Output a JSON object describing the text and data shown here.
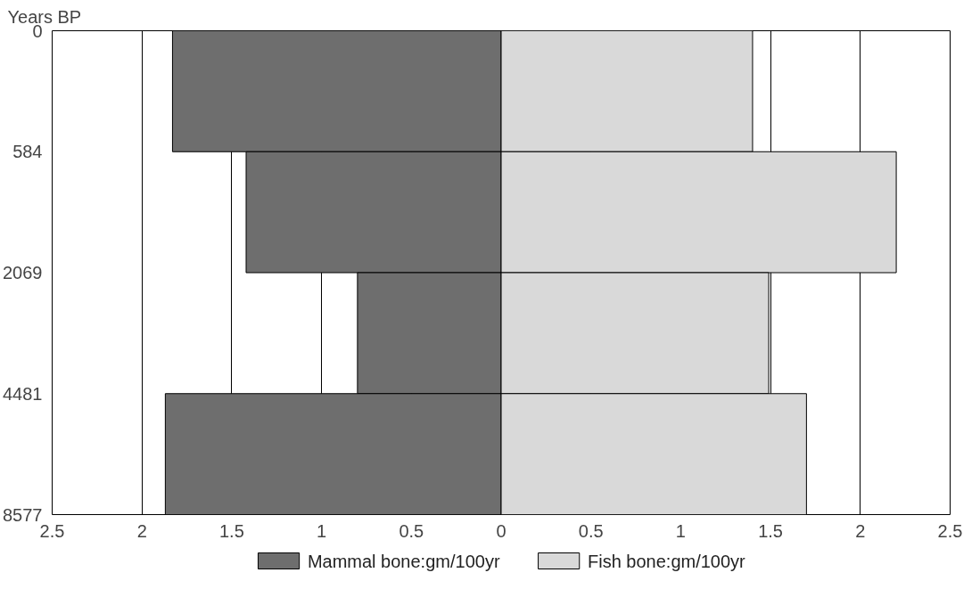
{
  "chart_data": {
    "type": "bar",
    "orientation": "horizontal",
    "ylabel": "Years BP",
    "stacked": true,
    "categories": [
      null,
      null,
      null,
      null
    ],
    "series": [
      {
        "name": "Mammal bone:gm/100yr",
        "color": "#6e6e6e",
        "values": [
          -1.83,
          -1.42,
          -0.8,
          -1.87
        ]
      },
      {
        "name": "Fish bone:gm/100yr",
        "color": "#d9d9d9",
        "values": [
          1.4,
          2.2,
          1.49,
          1.7
        ]
      }
    ],
    "xlim": [
      -2.5,
      2.5
    ],
    "xticks": [
      {
        "value": -2.5,
        "label": "2.5"
      },
      {
        "value": -2,
        "label": "2"
      },
      {
        "value": -1.5,
        "label": "1.5"
      },
      {
        "value": -1,
        "label": "1"
      },
      {
        "value": -0.5,
        "label": "0.5"
      },
      0,
      0.5,
      1,
      1.5,
      2,
      2.5
    ],
    "annotations": [
      "0",
      "584",
      "2069",
      "4481",
      "8577"
    ],
    "grid": "x",
    "legend": "bottom"
  }
}
